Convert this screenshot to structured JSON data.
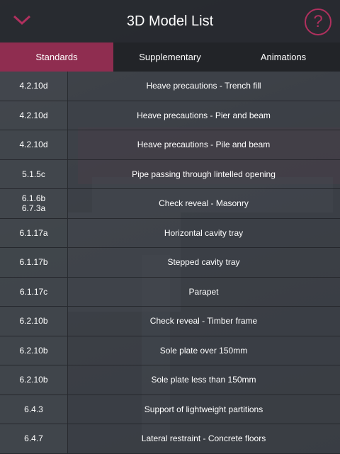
{
  "header": {
    "title": "3D Model List",
    "help": "?"
  },
  "tabs": [
    {
      "label": "Standards",
      "selected": true
    },
    {
      "label": "Supplementary",
      "selected": false
    },
    {
      "label": "Animations",
      "selected": false
    }
  ],
  "rows": [
    {
      "codes": [
        "4.2.10d"
      ],
      "title": "Heave precautions - Trench fill"
    },
    {
      "codes": [
        "4.2.10d"
      ],
      "title": "Heave precautions - Pier and beam"
    },
    {
      "codes": [
        "4.2.10d"
      ],
      "title": "Heave precautions - Pile and beam"
    },
    {
      "codes": [
        "5.1.5c"
      ],
      "title": "Pipe passing through lintelled opening"
    },
    {
      "codes": [
        "6.1.6b",
        "6.7.3a"
      ],
      "title": "Check reveal - Masonry"
    },
    {
      "codes": [
        "6.1.17a"
      ],
      "title": "Horizontal cavity tray"
    },
    {
      "codes": [
        "6.1.17b"
      ],
      "title": "Stepped cavity tray"
    },
    {
      "codes": [
        "6.1.17c"
      ],
      "title": "Parapet"
    },
    {
      "codes": [
        "6.2.10b"
      ],
      "title": "Check reveal - Timber frame"
    },
    {
      "codes": [
        "6.2.10b"
      ],
      "title": "Sole plate over 150mm"
    },
    {
      "codes": [
        "6.2.10b"
      ],
      "title": "Sole plate less than 150mm"
    },
    {
      "codes": [
        "6.4.3"
      ],
      "title": "Support of lightweight partitions"
    },
    {
      "codes": [
        "6.4.7"
      ],
      "title": "Lateral restraint - Concrete floors"
    }
  ]
}
